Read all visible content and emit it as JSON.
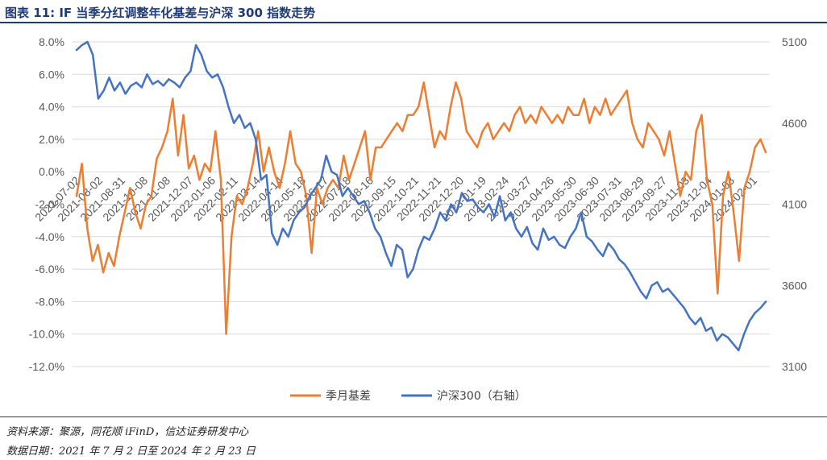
{
  "header": {
    "title_label": "图表 11:",
    "title_text": "IF 当季分红调整年化基差与沪深 300 指数走势"
  },
  "footer": {
    "source": "资料来源：聚源，同花顺 iFinD，信达证券研发中心",
    "date_range": "数据日期：2021 年 7 月 2 日至 2024 年 2 月 23 日"
  },
  "colors": {
    "basis": "#ED7D31",
    "index": "#4472C4",
    "grid": "#D9D9D9",
    "text": "#595959"
  },
  "chart_data": {
    "type": "line",
    "title": "",
    "y_left": {
      "ticks": [
        "8.0%",
        "6.0%",
        "4.0%",
        "2.0%",
        "0.0%",
        "-2.0%",
        "-4.0%",
        "-6.0%",
        "-8.0%",
        "-10.0%",
        "-12.0%"
      ],
      "range": [
        -12,
        8
      ]
    },
    "y_right": {
      "ticks": [
        "5100",
        "4600",
        "4100",
        "3600",
        "3100"
      ],
      "range": [
        3100,
        5100
      ]
    },
    "x_tick_labels": [
      "2021-07-02",
      "2021-08-02",
      "2021-08-31",
      "2021-10-08",
      "2021-11-08",
      "2021-12-07",
      "2022-01-06",
      "2022-02-11",
      "2022-03-14",
      "2022-04-14",
      "2022-05-18",
      "2022-06-17",
      "2022-07-18",
      "2022-08-16",
      "2022-09-15",
      "2022-10-21",
      "2022-11-21",
      "2022-12-20",
      "2023-01-19",
      "2023-02-24",
      "2023-03-27",
      "2023-04-26",
      "2023-05-30",
      "2023-06-30",
      "2023-07-31",
      "2023-08-29",
      "2023-09-27",
      "2023-11-03",
      "2023-12-04",
      "2024-01-03",
      "2024-02-01"
    ],
    "grid": true,
    "legend_position": "bottom",
    "series": [
      {
        "name": "季月基差",
        "axis": "left",
        "values": [
          -1.5,
          0.5,
          -3.5,
          -5.5,
          -4.5,
          -6.2,
          -5.0,
          -5.8,
          -4.0,
          -2.5,
          -1.0,
          -2.5,
          -3.5,
          -2.0,
          -1.5,
          0.8,
          1.5,
          2.5,
          4.5,
          1.0,
          3.5,
          0.2,
          1.0,
          -0.5,
          0.5,
          0.0,
          2.5,
          -0.5,
          -10.0,
          -4.0,
          -1.5,
          -2.0,
          -1.0,
          0.5,
          2.5,
          0.0,
          1.5,
          0.0,
          -1.0,
          0.5,
          2.5,
          0.5,
          0.0,
          -1.5,
          -5.0,
          -1.0,
          -2.0,
          -1.0,
          -0.5,
          -1.0,
          1.0,
          -0.5,
          0.5,
          1.5,
          2.5,
          -0.5,
          1.5,
          1.5,
          2.0,
          2.5,
          3.0,
          2.5,
          3.5,
          3.5,
          4.0,
          5.5,
          3.5,
          1.5,
          2.5,
          2.0,
          4.0,
          5.5,
          4.5,
          2.5,
          2.0,
          1.5,
          2.5,
          3.0,
          2.0,
          2.5,
          3.0,
          2.5,
          3.5,
          4.0,
          3.0,
          3.5,
          3.0,
          4.0,
          3.5,
          3.0,
          3.5,
          3.0,
          4.0,
          3.5,
          3.5,
          4.5,
          3.0,
          4.0,
          3.5,
          4.5,
          3.5,
          4.0,
          4.5,
          5.0,
          3.0,
          2.0,
          1.5,
          3.0,
          2.5,
          2.0,
          1.0,
          2.5,
          0.5,
          -1.5,
          0.0,
          -0.5,
          2.5,
          3.5,
          -0.5,
          -2.0,
          -7.5,
          -1.5,
          0.0,
          -2.5,
          -5.5,
          -1.0,
          0.0,
          1.5,
          2.0,
          1.2
        ]
      },
      {
        "name": "沪深300（右轴）",
        "axis": "right",
        "values": [
          5050,
          5080,
          5100,
          5020,
          4750,
          4800,
          4880,
          4800,
          4850,
          4780,
          4830,
          4850,
          4820,
          4900,
          4840,
          4860,
          4830,
          4870,
          4850,
          4820,
          4880,
          4920,
          5080,
          5020,
          4920,
          4880,
          4900,
          4820,
          4700,
          4600,
          4650,
          4570,
          4600,
          4500,
          4250,
          4280,
          3920,
          3850,
          3950,
          3900,
          4000,
          4050,
          4080,
          4150,
          4200,
          4250,
          4400,
          4300,
          4280,
          4150,
          4200,
          4150,
          4100,
          4120,
          4050,
          3950,
          3900,
          3800,
          3720,
          3850,
          3820,
          3650,
          3700,
          3820,
          3900,
          3880,
          3950,
          4050,
          4000,
          4100,
          4050,
          4170,
          4120,
          4130,
          4080,
          4050,
          4100,
          4020,
          4150,
          4000,
          4050,
          3950,
          3900,
          3960,
          3860,
          3820,
          3950,
          3880,
          3900,
          3850,
          3830,
          3900,
          3950,
          4050,
          3900,
          3870,
          3820,
          3780,
          3860,
          3820,
          3760,
          3730,
          3680,
          3620,
          3560,
          3520,
          3600,
          3620,
          3560,
          3580,
          3540,
          3500,
          3460,
          3400,
          3360,
          3400,
          3320,
          3340,
          3260,
          3300,
          3280,
          3240,
          3200,
          3300,
          3380,
          3430,
          3460,
          3500
        ]
      }
    ]
  }
}
